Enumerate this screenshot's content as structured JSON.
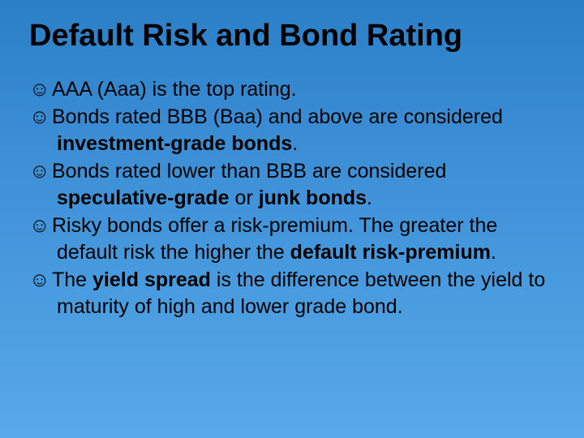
{
  "slide": {
    "title": "Default Risk and Bond Rating",
    "title_color": "#000000",
    "title_fontsize": 38,
    "background_gradient": [
      "#2a7fc7",
      "#3a8dd4",
      "#4a9de0",
      "#5aa8e8"
    ],
    "bullet_marker": "☺",
    "body_fontsize": 25,
    "bullets": [
      {
        "pre": "AAA (Aaa) is the top rating.",
        "bold1": "",
        "mid": "",
        "bold2": "",
        "post": ""
      },
      {
        "pre": "Bonds rated BBB (Baa) and above are considered ",
        "bold1": "investment-grade bonds",
        "mid": ".",
        "bold2": "",
        "post": ""
      },
      {
        "pre": "Bonds rated lower than BBB are considered ",
        "bold1": "speculative-grade",
        "mid": " or ",
        "bold2": "junk bonds",
        "post": "."
      },
      {
        "pre": "Risky bonds offer a risk-premium. The greater the default risk the higher the ",
        "bold1": "default risk-premium",
        "mid": ".",
        "bold2": "",
        "post": ""
      },
      {
        "pre": "The ",
        "bold1": "yield spread",
        "mid": " is the difference between the yield to maturity of high and lower grade bond.",
        "bold2": "",
        "post": ""
      }
    ]
  }
}
